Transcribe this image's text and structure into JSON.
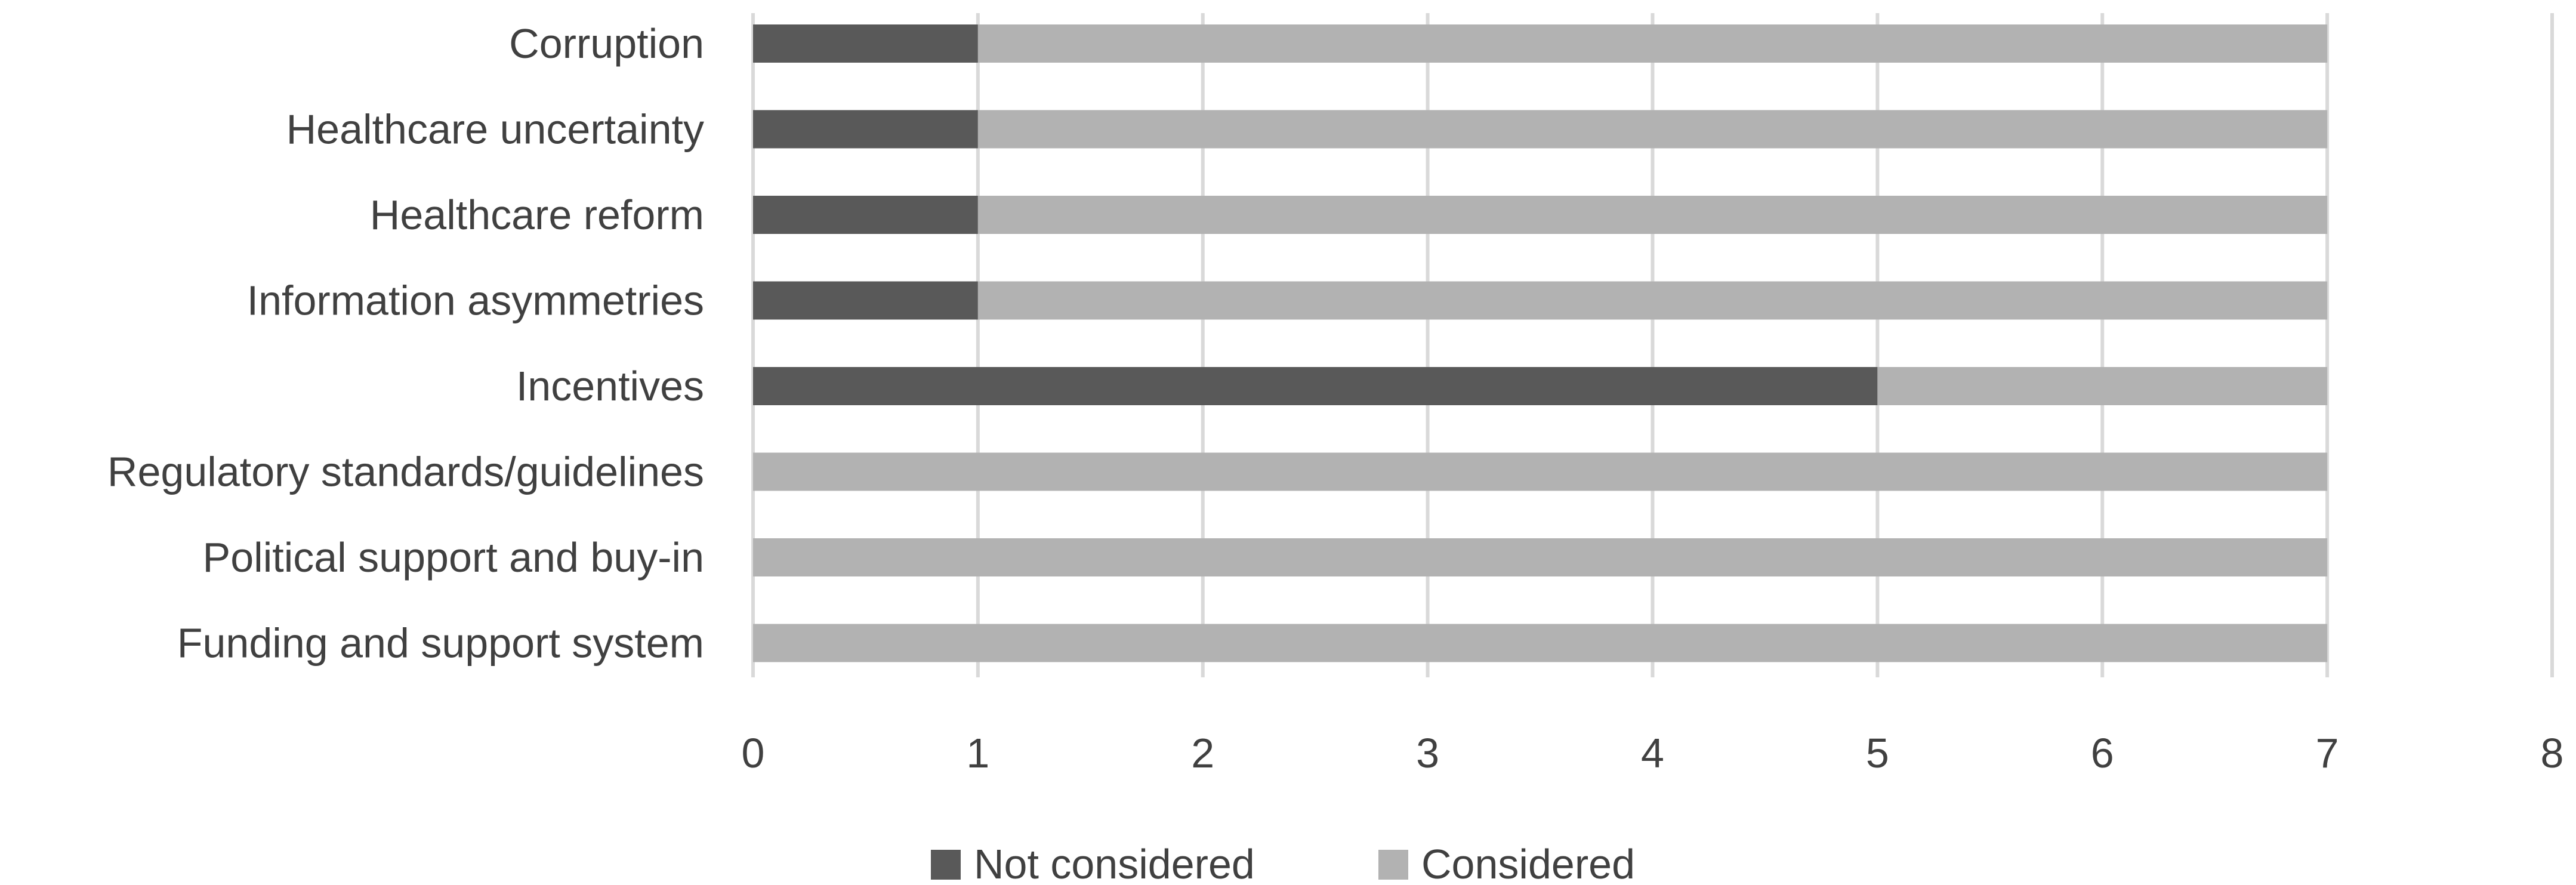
{
  "chart_data": {
    "type": "bar",
    "orientation": "horizontal",
    "stacked": true,
    "categories": [
      "Corruption",
      "Healthcare uncertainty",
      "Healthcare reform",
      "Information asymmetries",
      "Incentives",
      "Regulatory standards/guidelines",
      "Political support and buy-in",
      "Funding and support system"
    ],
    "series": [
      {
        "name": "Not considered",
        "color": "#595959",
        "values": [
          1,
          1,
          1,
          1,
          5,
          0,
          0,
          0
        ]
      },
      {
        "name": "Considered",
        "color": "#b2b2b2",
        "values": [
          6,
          6,
          6,
          6,
          2,
          7,
          7,
          7
        ]
      }
    ],
    "xlim": [
      0,
      8
    ],
    "xticks": [
      "0",
      "1",
      "2",
      "3",
      "4",
      "5",
      "6",
      "7",
      "8"
    ],
    "grid": "vertical",
    "legend": "bottom-center",
    "title": "",
    "xlabel": "",
    "ylabel": ""
  }
}
